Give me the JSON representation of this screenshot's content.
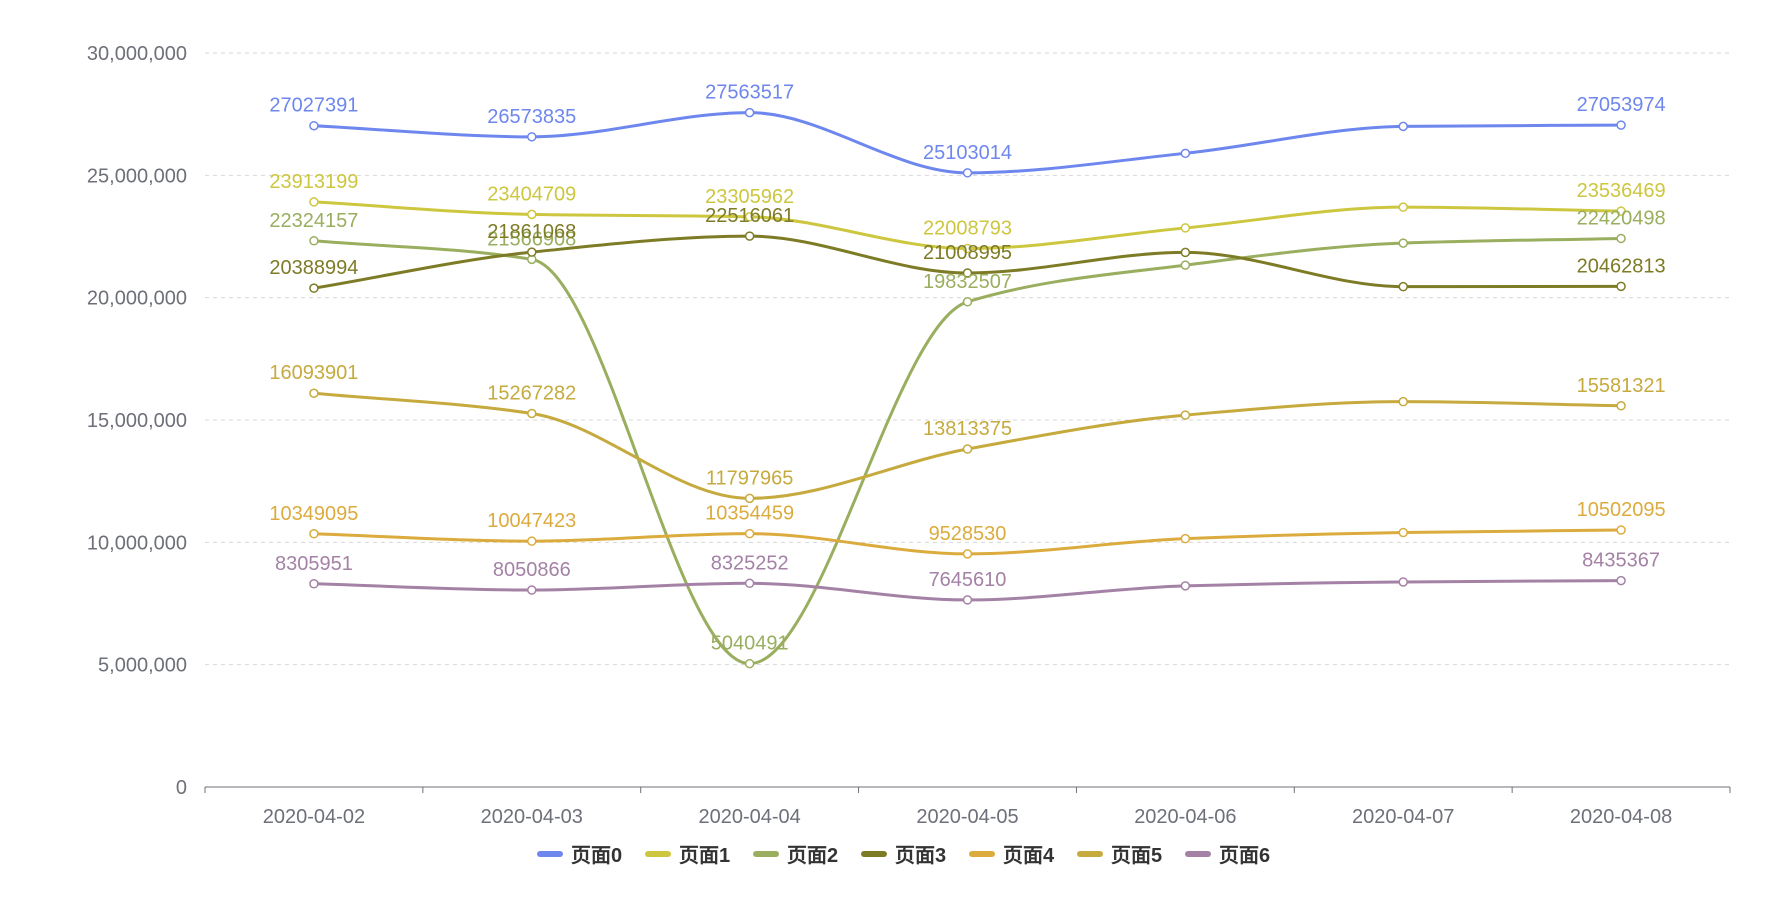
{
  "chart_data": {
    "type": "line",
    "smooth": true,
    "x": [
      "2020-04-02",
      "2020-04-03",
      "2020-04-04",
      "2020-04-05",
      "2020-04-06",
      "2020-04-07",
      "2020-04-08"
    ],
    "ylim": [
      0,
      30000000
    ],
    "yticks": [
      0,
      5000000,
      10000000,
      15000000,
      20000000,
      25000000,
      30000000
    ],
    "ytick_labels": [
      "0",
      "5,000,000",
      "10,000,000",
      "15,000,000",
      "20,000,000",
      "25,000,000",
      "30,000,000"
    ],
    "grid": "horizontal-dashed",
    "legend_position": "bottom",
    "series": [
      {
        "name": "页面0",
        "color": "#6e87ee",
        "values": [
          27027391,
          26573835,
          27563517,
          25103014,
          25900000,
          27000000,
          27053974
        ],
        "labels": [
          "27027391",
          "26573835",
          "27563517",
          "25103014",
          "",
          "",
          "27053974"
        ]
      },
      {
        "name": "页面1",
        "color": "#cdc63f",
        "values": [
          23913199,
          23404709,
          23305962,
          22008793,
          22850000,
          23700000,
          23536469
        ],
        "labels": [
          "23913199",
          "23404709",
          "23305962",
          "22008793",
          "",
          "",
          "23536469"
        ]
      },
      {
        "name": "页面2",
        "color": "#9aae5f",
        "values": [
          22324157,
          21566908,
          5040491,
          19832507,
          21330000,
          22230000,
          22420498
        ],
        "labels": [
          "22324157",
          "21566908",
          "5040491",
          "19832507",
          "",
          "",
          "22420498"
        ]
      },
      {
        "name": "页面3",
        "color": "#7e7b26",
        "values": [
          20388994,
          21861068,
          22516061,
          21008995,
          21850000,
          20450000,
          20462813
        ],
        "labels": [
          "20388994",
          "21861068",
          "22516061",
          "21008995",
          "",
          "",
          "20462813"
        ]
      },
      {
        "name": "页面4",
        "color": "#dcab3d",
        "values": [
          10349095,
          10047423,
          10354459,
          9528530,
          10150000,
          10400000,
          10502095
        ],
        "labels": [
          "10349095",
          "10047423",
          "10354459",
          "9528530",
          "",
          "",
          "10502095"
        ]
      },
      {
        "name": "页面5",
        "color": "#c6aa3e",
        "values": [
          16093901,
          15267282,
          11797965,
          13813375,
          15200000,
          15750000,
          15581321
        ],
        "labels": [
          "16093901",
          "15267282",
          "11797965",
          "13813375",
          "",
          "",
          "15581321"
        ]
      },
      {
        "name": "页面6",
        "color": "#a482a6",
        "values": [
          8305951,
          8050866,
          8325252,
          7645610,
          8220000,
          8380000,
          8435367
        ],
        "labels": [
          "8305951",
          "8050866",
          "8325252",
          "7645610",
          "",
          "",
          "8435367"
        ]
      }
    ]
  }
}
